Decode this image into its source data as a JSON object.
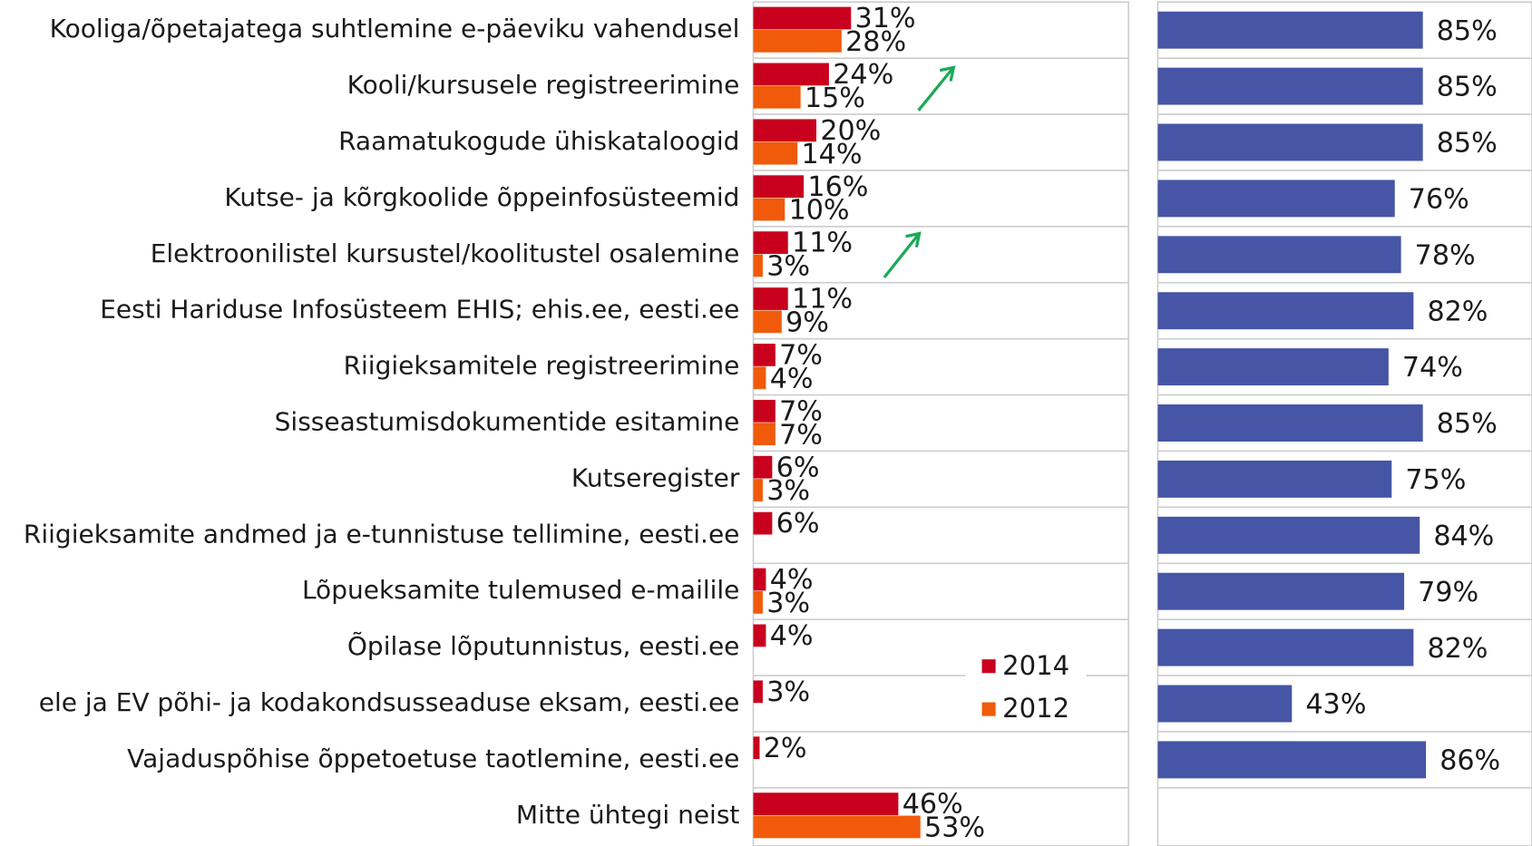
{
  "chart_data": [
    {
      "type": "bar",
      "orientation": "horizontal",
      "categories": [
        "Kooliga/õpetajatega suhtlemine e-päeviku vahendusel",
        "Kooli/kursusele registreerimine",
        "Raamatukogude ühiskataloogid",
        "Kutse- ja kõrgkoolide õppeinfosüsteemid",
        "Elektroonilistel kursustel/koolitustel osalemine",
        "Eesti Hariduse Infosüsteem EHIS; ehis.ee, eesti.ee",
        "Riigieksamitele registreerimine",
        "Sisseastumisdokumentide esitamine",
        "Kutseregister",
        "Riigieksamite andmed ja e-tunnistuse tellimine, eesti.ee",
        "Lõpueksamite tulemused e-mailile",
        "Õpilase lõputunnistus, eesti.ee",
        "ele ja EV põhi- ja kodakondsusseaduse eksam, eesti.ee",
        "Vajaduspõhise õppetoetuse taotlemine,  eesti.ee",
        "Mitte ühtegi neist"
      ],
      "series": [
        {
          "name": "2014",
          "color": "#c8001e",
          "values": [
            31,
            24,
            20,
            16,
            11,
            11,
            7,
            7,
            6,
            6,
            4,
            4,
            3,
            2,
            46
          ],
          "value_labels": [
            "31%",
            "24%",
            "20%",
            "16%",
            "11%",
            "11%",
            "7%",
            "7%",
            "6%",
            "6%",
            "4%",
            "4%",
            "3%",
            "2%",
            "46%"
          ]
        },
        {
          "name": "2012",
          "color": "#f05a0a",
          "values": [
            28,
            15,
            14,
            10,
            3,
            9,
            4,
            7,
            3,
            null,
            3,
            null,
            null,
            null,
            53
          ],
          "value_labels": [
            "28%",
            "15%",
            "14%",
            "10%",
            "3%",
            "9%",
            "4%",
            "7%",
            "3%",
            null,
            "3%",
            null,
            null,
            null,
            "53%"
          ]
        }
      ],
      "xlim": [
        0,
        119
      ],
      "legend": "lower right"
    },
    {
      "type": "bar",
      "orientation": "horizontal",
      "color": "#4655a5",
      "values": [
        85,
        85,
        85,
        76,
        78,
        82,
        74,
        85,
        75,
        84,
        79,
        82,
        43,
        86,
        null
      ],
      "value_labels": [
        "85%",
        "85%",
        "85%",
        "76%",
        "78%",
        "82%",
        "74%",
        "85%",
        "75%",
        "84%",
        "79%",
        "82%",
        "43%",
        "86%",
        null
      ],
      "xlim": [
        0,
        120
      ]
    }
  ]
}
